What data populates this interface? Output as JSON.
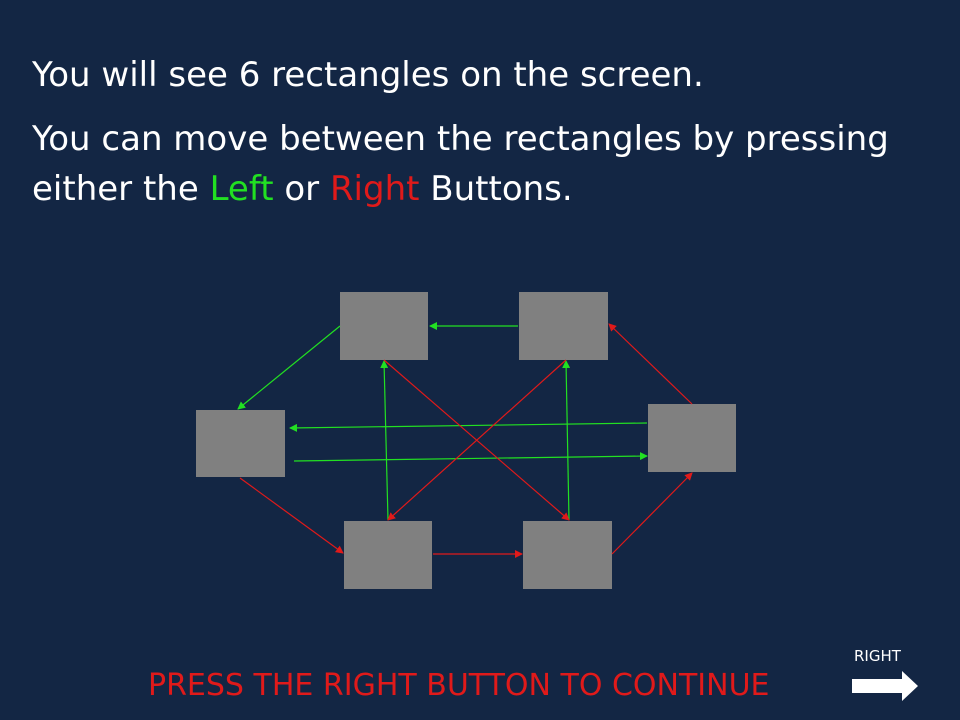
{
  "instructions": {
    "line1": "You will see 6 rectangles on the screen.",
    "line2_before": "You can move between the rectangles by pressing either the ",
    "line2_left": "Left",
    "line2_middle": " or ",
    "line2_right": "Right",
    "line2_after": " Buttons."
  },
  "colors": {
    "background": "#132644",
    "rectangle": "#808080",
    "left_link": "#22e022",
    "right_link": "#e01a1a"
  },
  "footer": {
    "prompt": "PRESS THE RIGHT BUTTON TO CONTINUE"
  },
  "nav": {
    "right_label": "RIGHT",
    "right_icon": "right-arrow-icon"
  }
}
